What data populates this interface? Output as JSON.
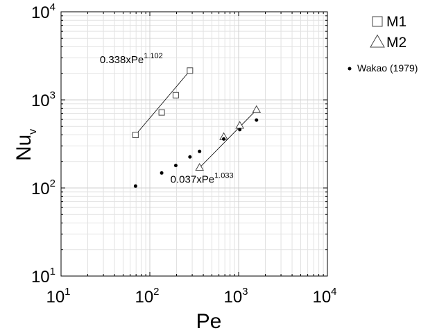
{
  "chart_data": {
    "type": "scatter",
    "xlabel": "Pe",
    "ylabel": {
      "base": "Nu",
      "sub": "v"
    },
    "x_scale": "log",
    "y_scale": "log",
    "xlim": [
      10,
      10000
    ],
    "ylim": [
      10,
      10000
    ],
    "grid": true,
    "legend_position": "right",
    "x_ticks": [
      {
        "value": 10,
        "base": "10",
        "exp": "1"
      },
      {
        "value": 100,
        "base": "10",
        "exp": "2"
      },
      {
        "value": 1000,
        "base": "10",
        "exp": "3"
      },
      {
        "value": 10000,
        "base": "10",
        "exp": "4"
      }
    ],
    "y_ticks": [
      {
        "value": 10,
        "base": "10",
        "exp": "1"
      },
      {
        "value": 100,
        "base": "10",
        "exp": "2"
      },
      {
        "value": 1000,
        "base": "10",
        "exp": "3"
      },
      {
        "value": 10000,
        "base": "10",
        "exp": "4"
      }
    ],
    "series": [
      {
        "name": "M1",
        "marker": "square",
        "x": [
          69,
          136,
          196,
          283
        ],
        "y": [
          400,
          720,
          1130,
          2150
        ]
      },
      {
        "name": "M2",
        "marker": "triangle",
        "x": [
          680,
          1030,
          1590
        ],
        "y": [
          380,
          510,
          770
        ]
      },
      {
        "name": "Wakao (1979)",
        "marker": "dot",
        "x": [
          69,
          136,
          196,
          283,
          363,
          680,
          1030,
          1590
        ],
        "y": [
          105,
          148,
          180,
          225,
          260,
          360,
          460,
          590
        ]
      }
    ],
    "fits": [
      {
        "label_base": "0.338xPe",
        "label_exp": "1.102",
        "x_range": [
          69,
          283
        ],
        "y_range": [
          400,
          2150
        ]
      },
      {
        "label_base": "0.037xPe",
        "label_exp": "1.033",
        "x_range": [
          363,
          1590
        ],
        "y_range": [
          170,
          770
        ]
      }
    ],
    "extra_points": [
      {
        "marker": "triangle",
        "x": 363,
        "y": 170
      }
    ]
  }
}
